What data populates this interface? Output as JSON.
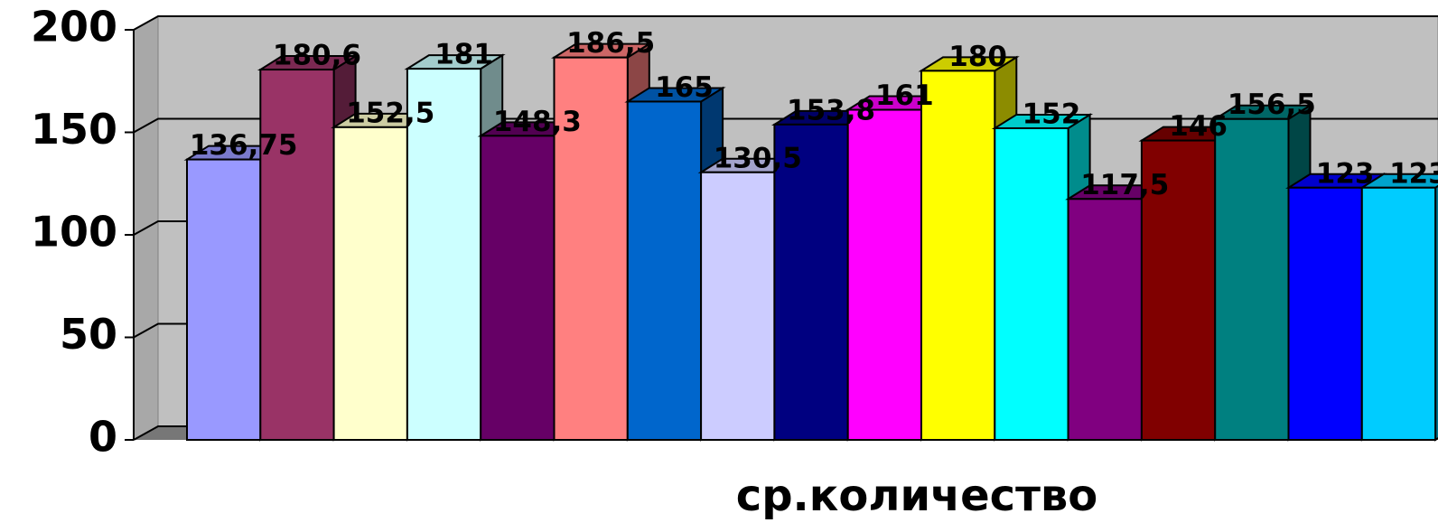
{
  "chart_data": {
    "type": "bar3d",
    "xlabel": "ср.количество",
    "values": [
      136.75,
      180.6,
      152.5,
      181,
      148.3,
      186.5,
      165,
      130.5,
      153.8,
      161,
      180,
      152,
      117.5,
      146,
      156.5,
      123,
      123
    ],
    "value_labels": [
      "136,75",
      "180,6",
      "152,5",
      "181",
      "148,3",
      "186,5",
      "165",
      "130,5",
      "153,8",
      "161",
      "180",
      "152",
      "117,5",
      "146",
      "156,5",
      "123",
      "123"
    ],
    "colors": [
      "#9999ff",
      "#993366",
      "#ffffcc",
      "#ccffff",
      "#660066",
      "#ff8080",
      "#0066cc",
      "#ccccff",
      "#000080",
      "#ff00ff",
      "#ffff00",
      "#00ffff",
      "#800080",
      "#800000",
      "#008080",
      "#0000ff",
      "#00ccff"
    ],
    "ylim": [
      0,
      200
    ],
    "yticks": [
      0,
      50,
      100,
      150,
      200
    ],
    "grid": true
  }
}
